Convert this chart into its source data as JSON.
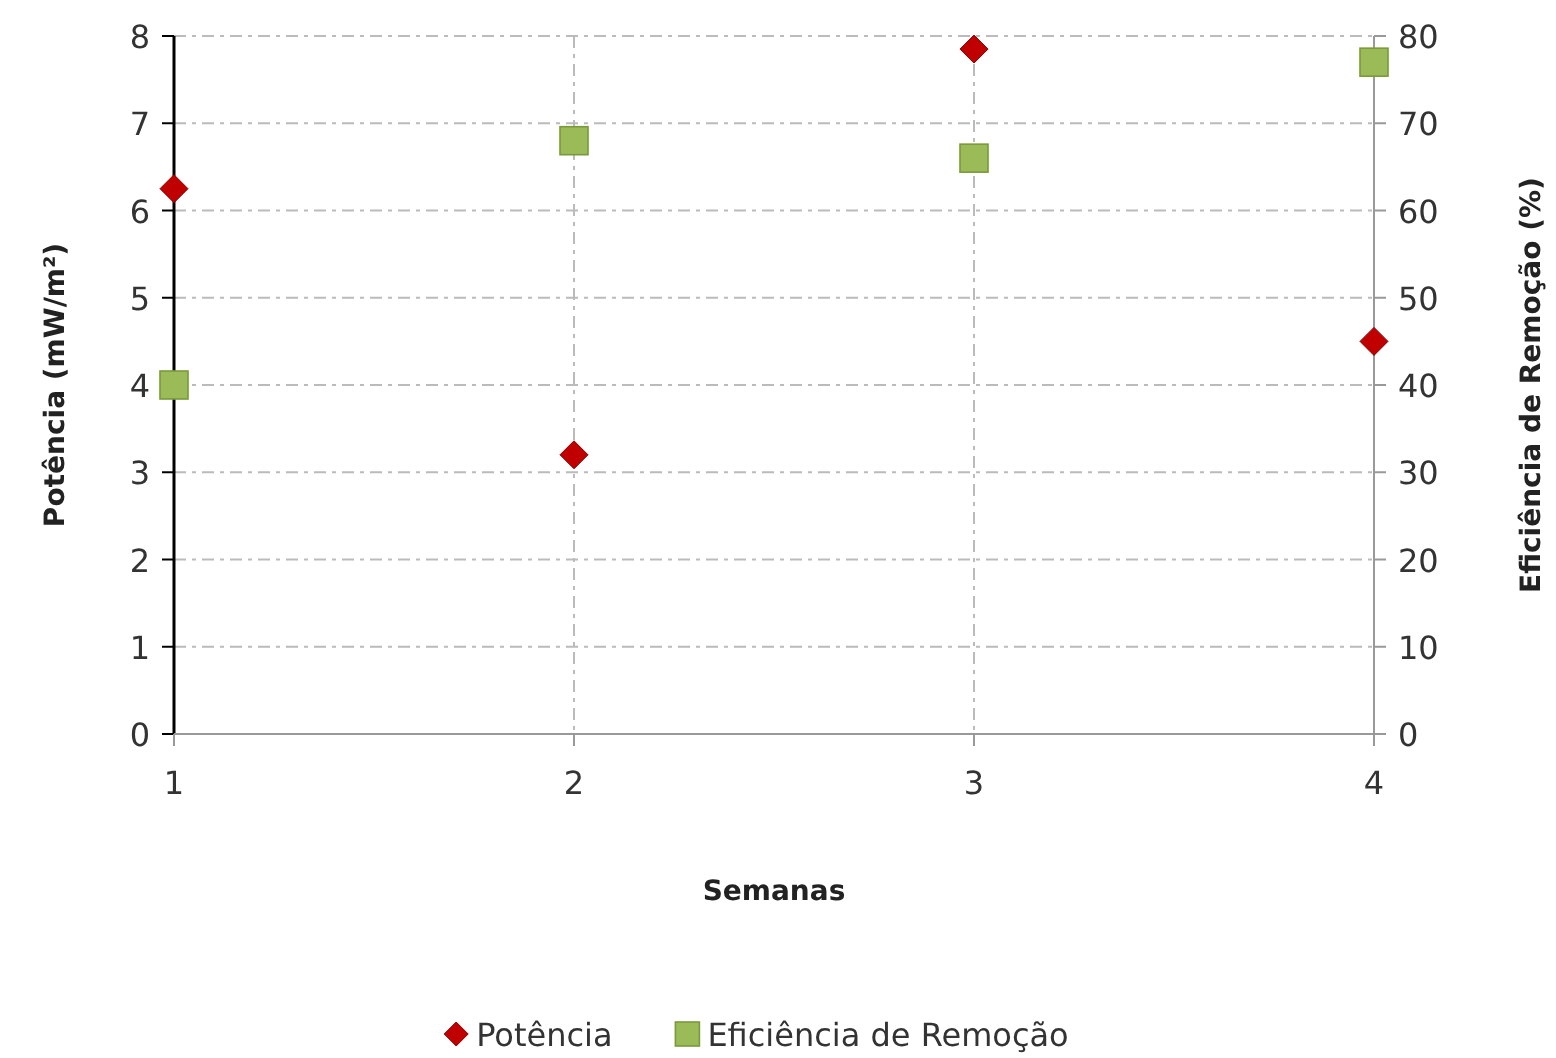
{
  "chart_data": {
    "type": "scatter",
    "xlabel": "Semanas",
    "ylabel": "Potência (mW/m²)",
    "y2label": "Eficiência de Remoção (%)",
    "x": [
      1,
      2,
      3,
      4
    ],
    "xlim": [
      1,
      4
    ],
    "xticks": [
      1,
      2,
      3,
      4
    ],
    "ylim": [
      0,
      8
    ],
    "yticks": [
      0,
      1,
      2,
      3,
      4,
      5,
      6,
      7,
      8
    ],
    "y2lim": [
      0,
      80
    ],
    "y2ticks": [
      0,
      10,
      20,
      30,
      40,
      50,
      60,
      70,
      80
    ],
    "grid": true,
    "legend": "bottom",
    "series": [
      {
        "name": "Potência",
        "color": "#c00000",
        "marker": "diamond",
        "values": [
          6.25,
          3.2,
          7.85,
          4.5
        ]
      },
      {
        "name": "Eficiência de Remoção",
        "color": "#9bbb59",
        "marker": "square",
        "axis": "y2",
        "values": [
          40,
          68,
          66,
          77
        ]
      }
    ]
  }
}
